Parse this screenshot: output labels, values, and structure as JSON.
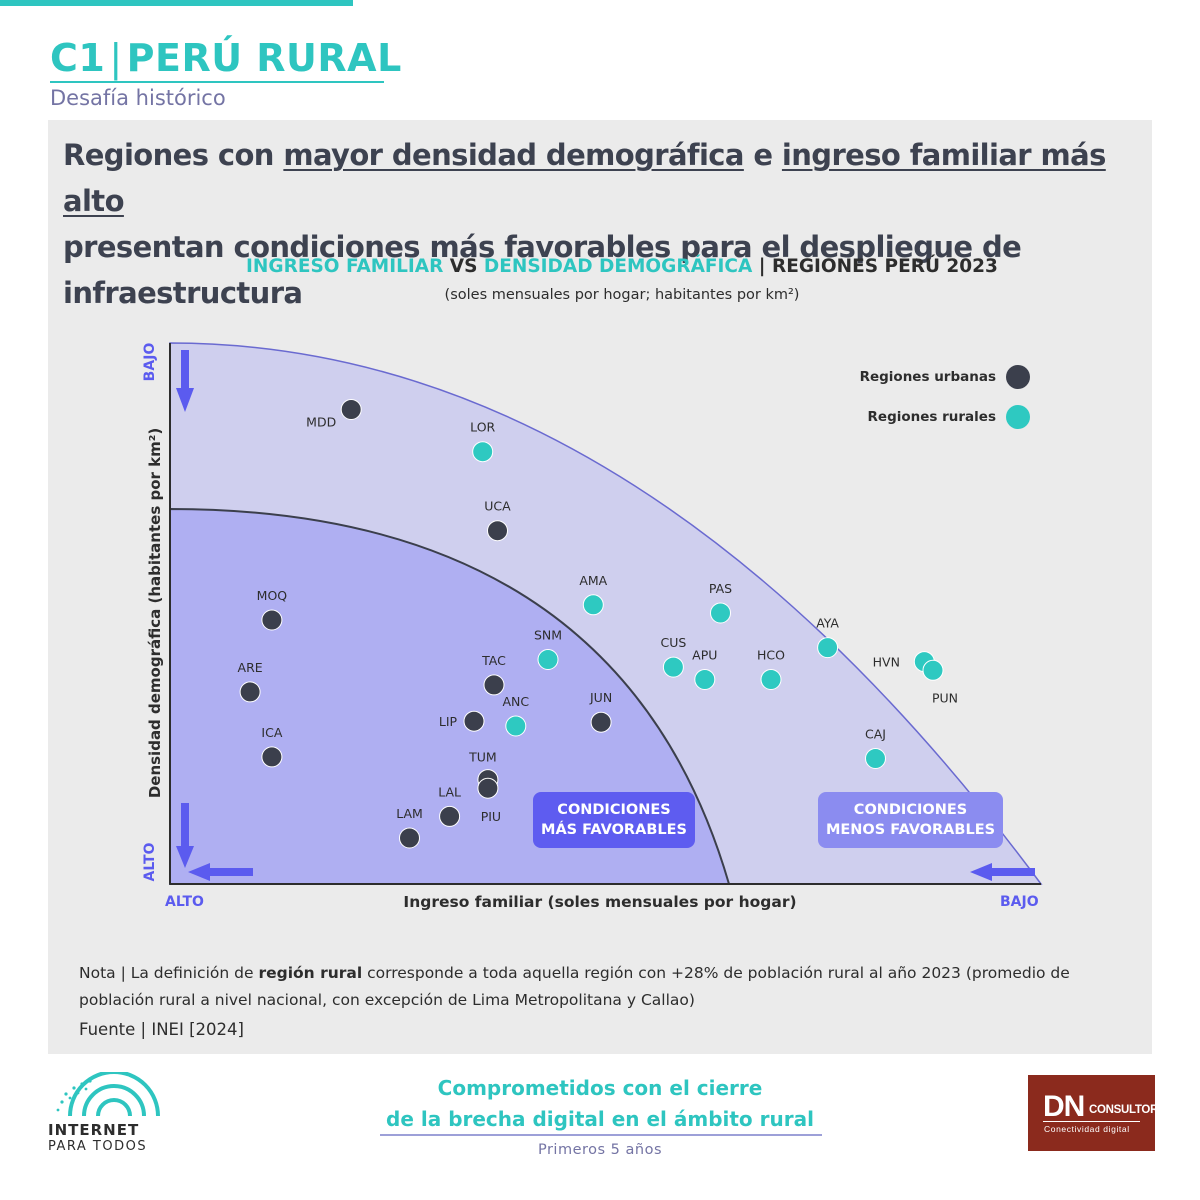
{
  "header": {
    "code": "C1",
    "separator": "|",
    "section": "PERÚ RURAL",
    "subtitle": "Desafía histórico"
  },
  "headline": {
    "p1": "Regiones con ",
    "u1": "mayor densidad demográfica",
    "p2": " e ",
    "u2": "ingreso familiar más alto",
    "line2": "presentan condiciones más favorables para el despliegue de infraestructura"
  },
  "chart_title": {
    "part1": "INGRESO FAMILIAR",
    "vs": " VS ",
    "part2": "DENSIDAD DEMOGRÁFICA",
    "part3": " | REGIONES PERÚ 2023",
    "units": "(soles mensuales por hogar; habitantes por km²)"
  },
  "chart_data": {
    "type": "scatter",
    "title": "INGRESO FAMILIAR VS DENSIDAD DEMOGRÁFICA | REGIONES PERÚ 2023",
    "subtitle": "(soles mensuales por hogar; habitantes por km²)",
    "xlabel": "Ingreso familiar (soles mensuales por hogar)",
    "ylabel": "Densidad demográfica (habitantes por km²)",
    "x_axis_ends": {
      "left": "ALTO",
      "right": "BAJO"
    },
    "y_axis_ends": {
      "top": "BAJO",
      "bottom": "ALTO"
    },
    "scale_note": "axes are unlabeled; x and y are relative positions (0 = ALTO end, 1 = BAJO end)",
    "zones": [
      {
        "label_line1": "CONDICIONES",
        "label_line2": "MÁS FAVORABLES"
      },
      {
        "label_line1": "CONDICIONES",
        "label_line2": "MENOS FAVORABLES"
      }
    ],
    "legend_placement": "top-right",
    "series": [
      {
        "name": "Regiones urbanas",
        "color": "#3b3f4c",
        "points": [
          {
            "label": "MDD",
            "x": 0.208,
            "y": 0.123
          },
          {
            "label": "UCA",
            "x": 0.376,
            "y": 0.347
          },
          {
            "label": "MOQ",
            "x": 0.117,
            "y": 0.512
          },
          {
            "label": "ARE",
            "x": 0.092,
            "y": 0.645
          },
          {
            "label": "ICA",
            "x": 0.117,
            "y": 0.765
          },
          {
            "label": "TAC",
            "x": 0.372,
            "y": 0.632
          },
          {
            "label": "LIP",
            "x": 0.349,
            "y": 0.699
          },
          {
            "label": "JUN",
            "x": 0.495,
            "y": 0.701
          },
          {
            "label": "TUM",
            "x": 0.365,
            "y": 0.807
          },
          {
            "label": "PIU",
            "x": 0.365,
            "y": 0.823
          },
          {
            "label": "LAL",
            "x": 0.321,
            "y": 0.875
          },
          {
            "label": "LAM",
            "x": 0.275,
            "y": 0.915
          }
        ]
      },
      {
        "name": "Regiones rurales",
        "color": "#2ec9c1",
        "points": [
          {
            "label": "LOR",
            "x": 0.359,
            "y": 0.201
          },
          {
            "label": "AMA",
            "x": 0.486,
            "y": 0.484
          },
          {
            "label": "SNM",
            "x": 0.434,
            "y": 0.585
          },
          {
            "label": "ANC",
            "x": 0.397,
            "y": 0.708
          },
          {
            "label": "PAS",
            "x": 0.632,
            "y": 0.499
          },
          {
            "label": "CUS",
            "x": 0.578,
            "y": 0.599
          },
          {
            "label": "APU",
            "x": 0.614,
            "y": 0.622
          },
          {
            "label": "HCO",
            "x": 0.69,
            "y": 0.622
          },
          {
            "label": "AYA",
            "x": 0.755,
            "y": 0.563
          },
          {
            "label": "HVN",
            "x": 0.866,
            "y": 0.589
          },
          {
            "label": "PUN",
            "x": 0.876,
            "y": 0.605
          },
          {
            "label": "CAJ",
            "x": 0.81,
            "y": 0.768
          }
        ]
      }
    ]
  },
  "note": {
    "prefix": "Nota | La definición de ",
    "bold": "región rural",
    "text": " corresponde a toda aquella región con +28% de población rural al año 2023 (promedio de población rural a nivel nacional, con excepción de Lima Metropolitana y Callao)"
  },
  "source": "Fuente | INEI [2024]",
  "footer": {
    "logo_line1": "INTERNET",
    "logo_line2": "PARA TODOS",
    "tagline_line1": "Comprometidos con el cierre",
    "tagline_line2": "de la brecha digital en el ámbito rural",
    "tagline_sub": "Primeros 5 años",
    "dn_logo": "DN",
    "dn_consultores": "CONSULTORES",
    "dn_tagline": "Conectividad digital"
  },
  "colors": {
    "accent": "#2ec5c0",
    "outer_zone": "#cfcfee",
    "inner_zone": "#afaff2",
    "arrow": "#5b5bef",
    "urban": "#3b3f4c",
    "rural": "#2ec9c1",
    "brand_dn": "#8b2a1d"
  }
}
